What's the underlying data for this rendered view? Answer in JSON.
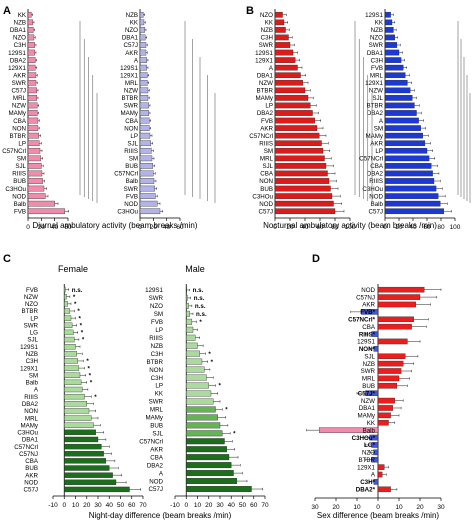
{
  "panel_letters": [
    "A",
    "B",
    "C",
    "D"
  ],
  "colors": {
    "pink": "#f08cab",
    "lavender": "#b3b3e8",
    "red": "#dd1b1b",
    "blue": "#1c39d6",
    "green_light": "#a9dc9a",
    "green_dark": "#1c6e1c",
    "green_mid": "#62b552",
    "sex_red": "#ee1d1d",
    "sex_pink": "#f08cab",
    "sex_blue": "#4256d8"
  },
  "chart_data": [
    {
      "id": "A-left",
      "type": "bar",
      "orientation": "horizontal",
      "color_key": "pink",
      "xlabel": "Diurnal ambulatory activity (beam breaks /min)",
      "xlim": [
        0,
        60
      ],
      "xticks": [
        0,
        20,
        40,
        60
      ],
      "categories": [
        "KK",
        "NZB",
        "DBA1",
        "NZO",
        "C3H",
        "129S1",
        "DBA2",
        "129X1",
        "AKR",
        "SWR",
        "C57J",
        "MRL",
        "NZW",
        "MAMy",
        "CBA",
        "NON",
        "BTBR",
        "LP",
        "C57NCrl",
        "SM",
        "SJL",
        "RIIIS",
        "BUB",
        "C3HOu",
        "NOD",
        "Balb",
        "FVB"
      ],
      "values": [
        5,
        7,
        8,
        9,
        10,
        10,
        11,
        11,
        12,
        12,
        13,
        13,
        14,
        14,
        15,
        15,
        16,
        17,
        18,
        19,
        20,
        21,
        22,
        24,
        26,
        40,
        55
      ],
      "errors": [
        2,
        2,
        2,
        2,
        2,
        2,
        2,
        2,
        2,
        2,
        2,
        2,
        2,
        2,
        2,
        2,
        3,
        3,
        3,
        3,
        3,
        3,
        3,
        4,
        4,
        5,
        6
      ]
    },
    {
      "id": "A-right",
      "type": "bar",
      "orientation": "horizontal",
      "color_key": "lavender",
      "xlabel": "",
      "xlim": [
        0,
        60
      ],
      "xticks": [
        0,
        20,
        40,
        60
      ],
      "categories": [
        "NZB",
        "KK",
        "NZO",
        "DBA1",
        "C57J",
        "AKR",
        "A",
        "129S1",
        "129X1",
        "MRL",
        "NZW",
        "BTBR",
        "SWR",
        "MAMy",
        "CBA",
        "NON",
        "LP",
        "SJL",
        "RIIIS",
        "SM",
        "BUB",
        "C57NCrl",
        "Balb",
        "SWR",
        "FVB",
        "NOD",
        "C3HOu"
      ],
      "values": [
        5,
        6,
        7,
        8,
        9,
        9,
        10,
        10,
        11,
        11,
        12,
        12,
        13,
        13,
        14,
        14,
        15,
        16,
        17,
        18,
        19,
        20,
        21,
        22,
        23,
        26,
        30
      ],
      "errors": [
        2,
        2,
        2,
        2,
        2,
        2,
        2,
        2,
        2,
        2,
        2,
        2,
        2,
        2,
        2,
        2,
        3,
        3,
        3,
        3,
        3,
        3,
        3,
        3,
        3,
        4,
        4
      ]
    },
    {
      "id": "B-left",
      "type": "bar",
      "orientation": "horizontal",
      "color_key": "red",
      "xlabel": "Nocturnal ambulatory activity (beam breaks /min)",
      "xlim": [
        0,
        100
      ],
      "xticks": [
        0,
        20,
        40,
        60,
        80,
        100
      ],
      "categories": [
        "NZO",
        "KK",
        "NZB",
        "C3H",
        "SWR",
        "129S1",
        "129X1",
        "A",
        "DBA1",
        "NZW",
        "BTBR",
        "MAMy",
        "LP",
        "DBA2",
        "FVB",
        "AKR",
        "C57NCrl",
        "RIIIS",
        "SM",
        "MRL",
        "SJL",
        "CBA",
        "NON",
        "BUB",
        "C3HOu",
        "NOD",
        "C57J"
      ],
      "values": [
        10,
        12,
        14,
        18,
        20,
        24,
        27,
        30,
        34,
        37,
        40,
        44,
        47,
        50,
        53,
        56,
        59,
        62,
        64,
        66,
        68,
        70,
        72,
        74,
        76,
        78,
        80
      ],
      "errors": [
        5,
        5,
        5,
        5,
        6,
        6,
        6,
        6,
        7,
        7,
        7,
        7,
        8,
        8,
        8,
        8,
        9,
        9,
        9,
        9,
        10,
        10,
        10,
        10,
        11,
        11,
        12
      ]
    },
    {
      "id": "B-right",
      "type": "bar",
      "orientation": "horizontal",
      "color_key": "blue",
      "xlabel": "",
      "xlim": [
        0,
        100
      ],
      "xticks": [
        0,
        20,
        40,
        60,
        80,
        100
      ],
      "categories": [
        "129S1",
        "KK",
        "NZB",
        "NZO",
        "SWR",
        "DBA1",
        "C3H",
        "FVB",
        "MRL",
        "129X1",
        "NZW",
        "SJL",
        "BTBR",
        "DBA2",
        "A",
        "SM",
        "MAMy",
        "AKR",
        "LP",
        "C57NCrl",
        "CBA",
        "DBA2",
        "RIIIS",
        "C3HOu",
        "NOD",
        "Balb",
        "C57J"
      ],
      "values": [
        8,
        10,
        12,
        14,
        17,
        20,
        23,
        26,
        29,
        32,
        36,
        39,
        42,
        45,
        48,
        51,
        54,
        57,
        60,
        63,
        66,
        68,
        70,
        73,
        76,
        79,
        84
      ],
      "errors": [
        4,
        4,
        4,
        4,
        5,
        5,
        5,
        5,
        6,
        6,
        6,
        6,
        7,
        7,
        7,
        7,
        8,
        8,
        8,
        8,
        9,
        9,
        9,
        9,
        10,
        10,
        11
      ]
    },
    {
      "id": "C-female",
      "type": "bar",
      "orientation": "horizontal",
      "title": "Female",
      "xlabel": "",
      "xlim": [
        -10,
        70
      ],
      "xticks": [
        -10,
        0,
        10,
        20,
        30,
        40,
        50,
        60,
        70
      ],
      "categories": [
        "FVB",
        "NZW",
        "NZO",
        "BTBR",
        "LP",
        "SWR",
        "LG",
        "SJL",
        "129S1",
        "NZB",
        "C3H",
        "129X1",
        "SM",
        "Balb",
        "A",
        "RIIIS",
        "DBA2",
        "NON",
        "MRL",
        "MAMy",
        "C3HOu",
        "DBA1",
        "C57NCrl",
        "C57NJ",
        "CBA",
        "BUB",
        "AKR",
        "NOD",
        "C57J"
      ],
      "values": [
        1,
        2,
        3,
        5,
        6,
        7,
        8,
        9,
        10,
        11,
        12,
        13,
        14,
        15,
        16,
        18,
        20,
        22,
        24,
        26,
        28,
        30,
        33,
        35,
        37,
        40,
        43,
        46,
        58
      ],
      "errors": [
        3,
        3,
        3,
        4,
        4,
        4,
        4,
        4,
        4,
        5,
        5,
        5,
        5,
        5,
        5,
        6,
        6,
        6,
        6,
        6,
        7,
        7,
        7,
        7,
        8,
        8,
        8,
        9,
        10
      ],
      "annotations": [
        "n.s.",
        "*",
        "*",
        "*",
        "*",
        "*",
        "*",
        "*",
        "",
        "",
        "*",
        "*",
        "*",
        "*",
        "",
        "*",
        "",
        "",
        "",
        "",
        "",
        "",
        "",
        "",
        "",
        "",
        "",
        "",
        ""
      ],
      "bar_color_keys": [
        "green_light",
        "green_light",
        "green_light",
        "green_light",
        "green_light",
        "green_light",
        "green_light",
        "green_light",
        "green_light",
        "green_light",
        "green_light",
        "green_light",
        "green_light",
        "green_light",
        "green_light",
        "green_light",
        "green_light",
        "green_light",
        "green_light",
        "green_light",
        "green_dark",
        "green_dark",
        "green_dark",
        "green_dark",
        "green_dark",
        "green_dark",
        "green_dark",
        "green_dark",
        "green_dark"
      ]
    },
    {
      "id": "C-male",
      "type": "bar",
      "orientation": "horizontal",
      "title": "Male",
      "xlabel": "Night-day difference (beam breaks /min)",
      "xlim": [
        -10,
        70
      ],
      "xticks": [
        -10,
        0,
        10,
        20,
        30,
        40,
        50,
        60,
        70
      ],
      "categories": [
        "129S1",
        "SWR",
        "NZO",
        "SM",
        "FVB",
        "LP",
        "RIIIS",
        "NZB",
        "C3H",
        "BTBR",
        "NON",
        "C3H",
        "LP",
        "KK",
        "SWR",
        "MRL",
        "MAMy",
        "BUB",
        "SJL",
        "C57NCrl",
        "AKR",
        "CBA",
        "DBA2",
        "A",
        "NOD",
        "C57J"
      ],
      "values": [
        0,
        1,
        2,
        3,
        5,
        6,
        8,
        10,
        12,
        14,
        16,
        18,
        20,
        22,
        24,
        26,
        28,
        30,
        32,
        34,
        36,
        38,
        40,
        42,
        45,
        58
      ],
      "errors": [
        3,
        3,
        3,
        3,
        4,
        4,
        4,
        5,
        5,
        5,
        5,
        6,
        6,
        6,
        6,
        6,
        7,
        7,
        7,
        7,
        7,
        8,
        8,
        8,
        9,
        10
      ],
      "annotations": [
        "n.s.",
        "n.s.",
        "n.s.",
        "n.s.",
        "*",
        "",
        "",
        "",
        "*",
        "*",
        "",
        "",
        "*",
        "",
        "",
        "*",
        "",
        "",
        "*",
        "",
        "",
        "",
        "",
        "",
        "",
        ""
      ],
      "bar_color_keys": [
        "green_light",
        "green_light",
        "green_light",
        "green_light",
        "green_light",
        "green_light",
        "green_light",
        "green_light",
        "green_light",
        "green_light",
        "green_light",
        "green_light",
        "green_light",
        "green_light",
        "green_light",
        "green_mid",
        "green_mid",
        "green_mid",
        "green_mid",
        "green_dark",
        "green_dark",
        "green_dark",
        "green_dark",
        "green_dark",
        "green_dark",
        "green_dark"
      ]
    },
    {
      "id": "D",
      "type": "bar",
      "orientation": "horizontal",
      "diverging": true,
      "xlabel": "Sex difference (beam breaks /min)",
      "xlim": [
        -30,
        30
      ],
      "xticks": [
        30,
        20,
        10,
        0,
        10,
        20,
        30
      ],
      "categories": [
        "NOD",
        "C57NJ",
        "AKR",
        "FVB*",
        "C57NCrl*",
        "CBA",
        "RIIIS*",
        "129S1",
        "NON*",
        "SJL",
        "NZB",
        "SWR",
        "MRL",
        "BUB",
        "C57J*",
        "NZW",
        "DBA1",
        "MAMy",
        "KK",
        "Balb",
        "C3HOu*",
        "LG*",
        "NZO",
        "BTBR",
        "129X1",
        "A",
        "C3H*",
        "DBA2*"
      ],
      "values": [
        22,
        20,
        18,
        -8,
        17,
        16,
        -3,
        14,
        -2,
        13,
        12,
        11,
        10,
        9,
        -6,
        8,
        7,
        6,
        5,
        -28,
        -4,
        -3,
        -2,
        -3,
        3,
        2,
        -2,
        6
      ],
      "errors": [
        8,
        8,
        7,
        5,
        7,
        7,
        3,
        6,
        2,
        6,
        5,
        5,
        5,
        5,
        4,
        4,
        4,
        4,
        3,
        6,
        3,
        3,
        2,
        3,
        2,
        2,
        2,
        3
      ],
      "bold_labels": [
        false,
        false,
        false,
        true,
        true,
        false,
        true,
        false,
        true,
        false,
        false,
        false,
        false,
        false,
        true,
        false,
        false,
        false,
        false,
        false,
        true,
        true,
        false,
        false,
        false,
        false,
        true,
        true
      ]
    }
  ]
}
